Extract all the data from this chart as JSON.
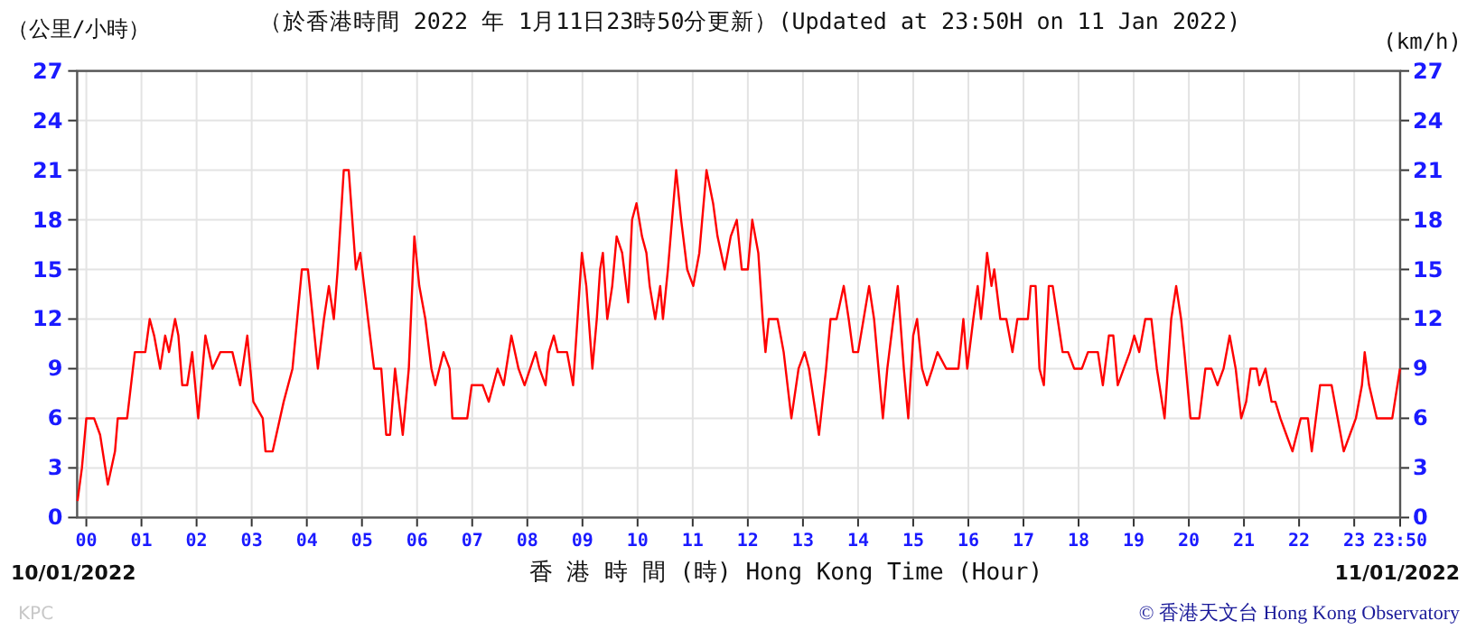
{
  "chart_data": {
    "type": "line",
    "title": "（於香港時間 2022 年 1月11日23時50分更新）(Updated at 23:50H on 11 Jan 2022)",
    "xlabel": "香 港 時 間 (時) Hong Kong Time (Hour)",
    "ylabel": "（公里/小時）",
    "y2label": "(km/h)",
    "annotations": [
      "10/01/2022",
      "11/01/2022",
      "KPC",
      "© 香港天文台 Hong Kong Observatory"
    ],
    "xlim": [
      -0.1667,
      23.8333
    ],
    "xticks": [
      {
        "value": 0,
        "label": "00"
      },
      {
        "value": 1,
        "label": "01"
      },
      {
        "value": 2,
        "label": "02"
      },
      {
        "value": 3,
        "label": "03"
      },
      {
        "value": 4,
        "label": "04"
      },
      {
        "value": 5,
        "label": "05"
      },
      {
        "value": 6,
        "label": "06"
      },
      {
        "value": 7,
        "label": "07"
      },
      {
        "value": 8,
        "label": "08"
      },
      {
        "value": 9,
        "label": "09"
      },
      10,
      11,
      12,
      13,
      14,
      15,
      16,
      17,
      18,
      19,
      20,
      21,
      22,
      23,
      {
        "value": 23.8333,
        "label": "23:50"
      }
    ],
    "ylim": [
      0,
      27
    ],
    "yticks": [
      0,
      3,
      6,
      9,
      12,
      15,
      18,
      21,
      24,
      27
    ],
    "y2lim": [
      0,
      27
    ],
    "y2ticks": [
      0,
      3,
      6,
      9,
      12,
      15,
      18,
      21,
      24,
      27
    ],
    "grid": true,
    "series": [
      {
        "color": "#ff0000",
        "x": [
          -0.16,
          -0.08,
          0,
          0.14,
          0.25,
          0.39,
          0.52,
          0.57,
          0.74,
          0.88,
          1.07,
          1.15,
          1.23,
          1.34,
          1.43,
          1.5,
          1.61,
          1.67,
          1.74,
          1.83,
          1.92,
          2.03,
          2.16,
          2.29,
          2.43,
          2.65,
          2.79,
          2.92,
          3.03,
          3.2,
          3.25,
          3.38,
          3.58,
          3.74,
          3.91,
          4.02,
          4.2,
          4.31,
          4.4,
          4.49,
          4.56,
          4.67,
          4.76,
          4.89,
          4.97,
          5.11,
          5.22,
          5.35,
          5.44,
          5.51,
          5.6,
          5.74,
          5.85,
          5.95,
          6.04,
          6.15,
          6.26,
          6.33,
          6.48,
          6.59,
          6.64,
          6.91,
          6.99,
          7.19,
          7.3,
          7.46,
          7.57,
          7.71,
          7.84,
          7.95,
          8.15,
          8.22,
          8.33,
          8.39,
          8.48,
          8.55,
          8.72,
          8.83,
          8.91,
          8.99,
          9.07,
          9.18,
          9.26,
          9.32,
          9.37,
          9.45,
          9.54,
          9.62,
          9.72,
          9.83,
          9.9,
          9.98,
          10.08,
          10.16,
          10.22,
          10.32,
          10.41,
          10.46,
          10.55,
          10.7,
          10.79,
          10.9,
          11.01,
          11.12,
          11.25,
          11.37,
          11.45,
          11.58,
          11.69,
          11.8,
          11.89,
          12.0,
          12.08,
          12.19,
          12.27,
          12.32,
          12.38,
          12.54,
          12.65,
          12.79,
          12.92,
          13.03,
          13.11,
          13.2,
          13.29,
          13.42,
          13.5,
          13.61,
          13.74,
          13.83,
          13.91,
          14.0,
          14.1,
          14.2,
          14.29,
          14.45,
          14.53,
          14.64,
          14.72,
          14.83,
          14.91,
          15.0,
          15.07,
          15.16,
          15.25,
          15.35,
          15.44,
          15.6,
          15.82,
          15.91,
          15.98,
          16.09,
          16.17,
          16.23,
          16.29,
          16.34,
          16.42,
          16.47,
          16.58,
          16.69,
          16.8,
          16.89,
          17.08,
          17.13,
          17.22,
          17.29,
          17.37,
          17.46,
          17.53,
          17.62,
          17.71,
          17.81,
          17.92,
          18.06,
          18.17,
          18.35,
          18.44,
          18.55,
          18.63,
          18.71,
          18.82,
          18.93,
          19.01,
          19.1,
          19.21,
          19.32,
          19.42,
          19.56,
          19.68,
          19.77,
          19.86,
          19.92,
          20.03,
          20.19,
          20.3,
          20.41,
          20.52,
          20.63,
          20.74,
          20.85,
          20.95,
          21.04,
          21.12,
          21.23,
          21.28,
          21.39,
          21.5,
          21.57,
          21.66,
          21.77,
          21.88,
          22.03,
          22.16,
          22.23,
          22.38,
          22.59,
          22.7,
          22.81,
          22.92,
          23.03,
          23.14,
          23.19,
          23.27,
          23.41,
          23.69,
          23.83
        ],
        "values": [
          1,
          3,
          6,
          6,
          5,
          2,
          4,
          6,
          6,
          10,
          10,
          12,
          11,
          9,
          11,
          10,
          12,
          11,
          8,
          8,
          10,
          6,
          11,
          9,
          10,
          10,
          8,
          11,
          7,
          6,
          4,
          4,
          7,
          9,
          15,
          15,
          9,
          12,
          14,
          12,
          15,
          21,
          21,
          15,
          16,
          12,
          9,
          9,
          5,
          5,
          9,
          5,
          9,
          17,
          14,
          12,
          9,
          8,
          10,
          9,
          6,
          6,
          8,
          8,
          7,
          9,
          8,
          11,
          9,
          8,
          10,
          9,
          8,
          10,
          11,
          10,
          10,
          8,
          12,
          16,
          14,
          9,
          12,
          15,
          16,
          12,
          14,
          17,
          16,
          13,
          18,
          19,
          17,
          16,
          14,
          12,
          14,
          12,
          15,
          21,
          18,
          15,
          14,
          16,
          21,
          19,
          17,
          15,
          17,
          18,
          15,
          15,
          18,
          16,
          12,
          10,
          12,
          12,
          10,
          6,
          9,
          10,
          9,
          7,
          5,
          9,
          12,
          12,
          14,
          12,
          10,
          10,
          12,
          14,
          12,
          6,
          9,
          12,
          14,
          9,
          6,
          11,
          12,
          9,
          8,
          9,
          10,
          9,
          9,
          12,
          9,
          12,
          14,
          12,
          14,
          16,
          14,
          15,
          12,
          12,
          10,
          12,
          12,
          14,
          14,
          9,
          8,
          14,
          14,
          12,
          10,
          10,
          9,
          9,
          10,
          10,
          8,
          11,
          11,
          8,
          9,
          10,
          11,
          10,
          12,
          12,
          9,
          6,
          12,
          14,
          12,
          10,
          6,
          6,
          9,
          9,
          8,
          9,
          11,
          9,
          6,
          7,
          9,
          9,
          8,
          9,
          7,
          7,
          6,
          5,
          4,
          6,
          6,
          4,
          8,
          8,
          6,
          4,
          5,
          6,
          8,
          10,
          8,
          6,
          6,
          9
        ]
      }
    ]
  }
}
